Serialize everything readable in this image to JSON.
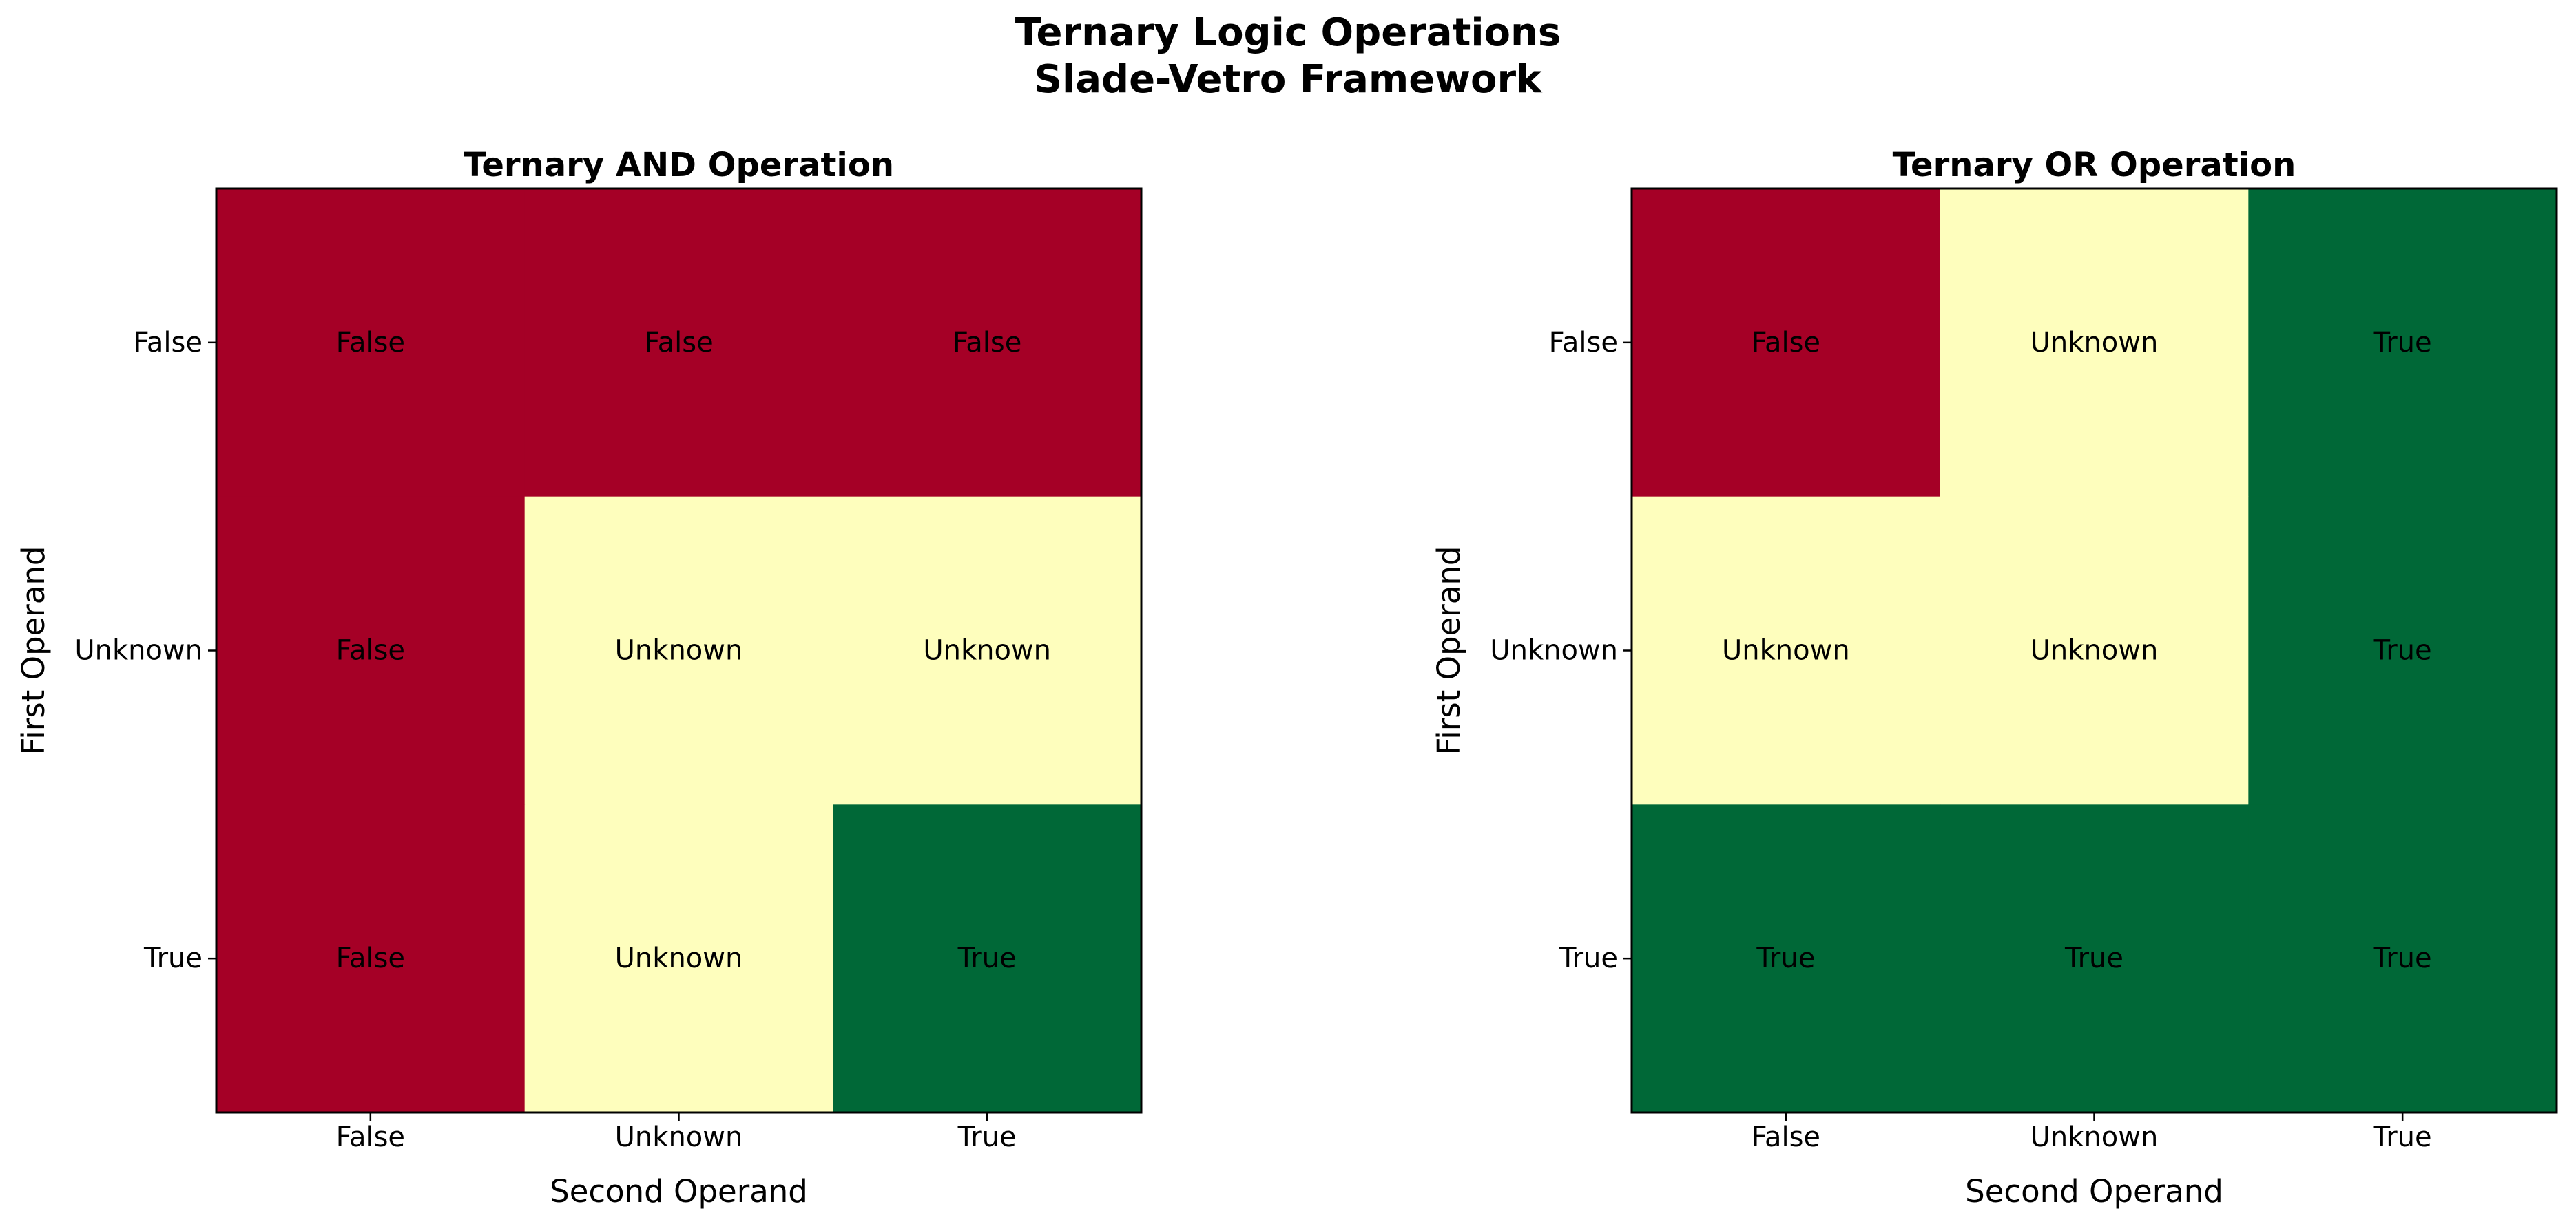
{
  "suptitle": {
    "line1": "Ternary Logic Operations",
    "line2": "Slade-Vetro Framework"
  },
  "colors": {
    "False": "#a50026",
    "Unknown": "#fefebd",
    "True": "#006837",
    "axis": "#000000"
  },
  "chart_data": [
    {
      "type": "heatmap",
      "title": "Ternary AND Operation",
      "xlabel": "Second Operand",
      "ylabel": "First Operand",
      "x_categories": [
        "False",
        "Unknown",
        "True"
      ],
      "y_categories": [
        "False",
        "Unknown",
        "True"
      ],
      "cells": [
        [
          "False",
          "False",
          "False"
        ],
        [
          "False",
          "Unknown",
          "Unknown"
        ],
        [
          "False",
          "Unknown",
          "True"
        ]
      ]
    },
    {
      "type": "heatmap",
      "title": "Ternary OR Operation",
      "xlabel": "Second Operand",
      "ylabel": "First Operand",
      "x_categories": [
        "False",
        "Unknown",
        "True"
      ],
      "y_categories": [
        "False",
        "Unknown",
        "True"
      ],
      "cells": [
        [
          "False",
          "Unknown",
          "True"
        ],
        [
          "Unknown",
          "Unknown",
          "True"
        ],
        [
          "True",
          "True",
          "True"
        ]
      ]
    }
  ]
}
